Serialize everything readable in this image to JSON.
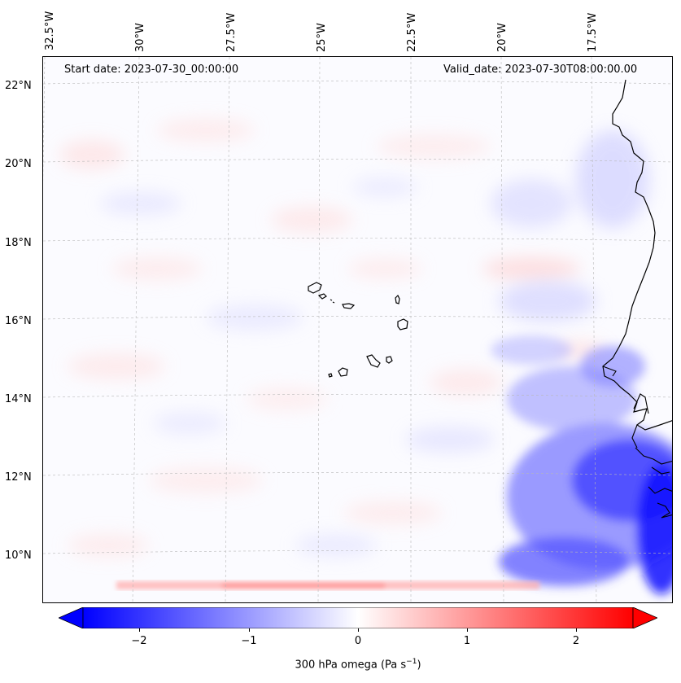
{
  "map": {
    "header_left": "Start date: 2023-07-30_00:00:00",
    "header_right": "Valid_date: 2023-07-30T08:00:00.00",
    "lon_labels": [
      "32.5°W",
      "30°W",
      "27.5°W",
      "25°W",
      "22.5°W",
      "20°W",
      "17.5°W"
    ],
    "lat_labels": [
      "22°N",
      "20°N",
      "18°N",
      "16°N",
      "14°N",
      "12°N",
      "10°N"
    ],
    "field": "300 hPa omega",
    "colors": {
      "negative": "#0000ff",
      "neutral": "#ffffff",
      "positive": "#ff0000"
    }
  },
  "colorbar": {
    "ticks": [
      "−2",
      "−1",
      "0",
      "1",
      "2"
    ],
    "tick_values": [
      -2,
      -1,
      0,
      1,
      2
    ],
    "range": [
      -2.6,
      2.6
    ],
    "label_prefix": "300 hPa omega (Pa s",
    "label_exponent": "−1",
    "label_suffix": ")"
  }
}
